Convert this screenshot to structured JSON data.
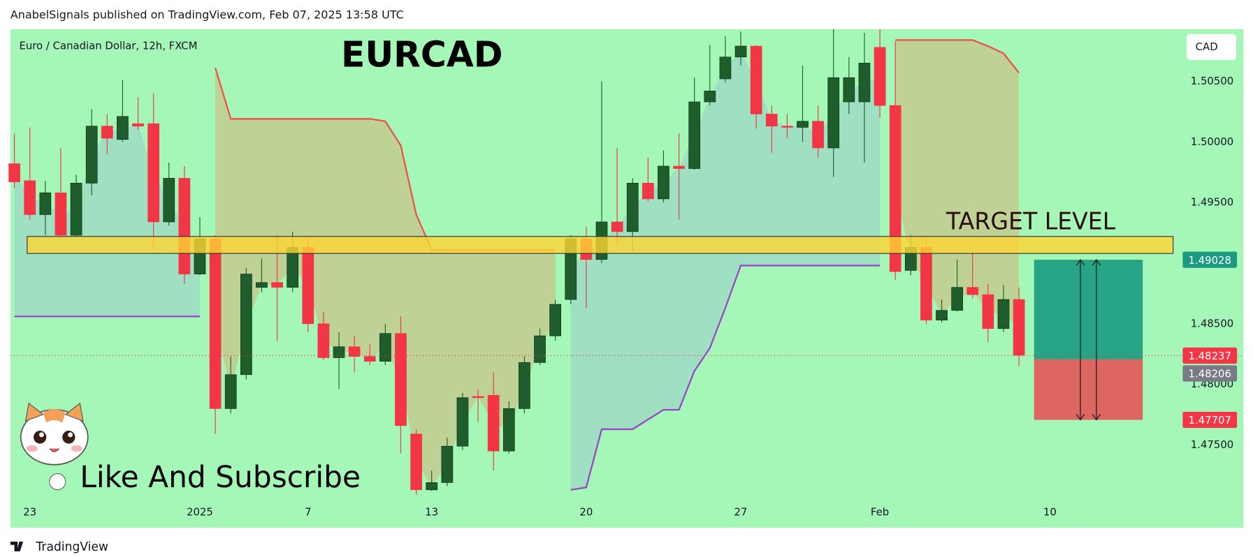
{
  "header": {
    "text": "AnabelSignals published on TradingView.com, Feb 07, 2025 13:58 UTC"
  },
  "footer": {
    "brand": "TradingView"
  },
  "chart_data": {
    "type": "candlestick",
    "title": "EURCAD",
    "subtitle": "Euro / Canadian Dollar, 12h, FXCM",
    "currency": "CAD",
    "annotation": "TARGET LEVEL",
    "caption": "Like And Subscribe",
    "up_color": "#1f5e2c",
    "down_color": "#f23645",
    "open": [
      1.4982,
      1.4968,
      1.494,
      1.4958,
      1.4923,
      1.4966,
      1.5013,
      1.5002,
      1.5015,
      1.5015,
      1.4934,
      1.497,
      1.4891,
      1.492,
      1.478,
      1.4808,
      1.488,
      1.4884,
      1.488,
      1.4913,
      1.485,
      1.4822,
      1.4831,
      1.4823,
      1.4819,
      1.4842,
      1.4759,
      1.4713,
      1.4719,
      1.4749,
      1.479,
      1.4791,
      1.4745,
      1.478,
      1.4818,
      1.484,
      1.487,
      1.492,
      1.4903,
      1.4934,
      1.4926,
      1.4966,
      1.4953,
      1.498,
      1.4978,
      1.5033,
      1.5052,
      1.507,
      1.5079,
      1.5023,
      1.5013,
      1.5012,
      1.5017,
      1.4995,
      1.5033,
      1.5033,
      1.5078,
      1.503,
      1.4894,
      1.4913,
      1.4853,
      1.4861,
      1.488,
      1.4874,
      1.4846,
      1.487
    ],
    "high": [
      1.5007,
      1.5012,
      1.4968,
      1.4995,
      1.4973,
      1.5027,
      1.5023,
      1.5051,
      1.5037,
      1.504,
      1.4983,
      1.498,
      1.4938,
      1.4923,
      1.4823,
      1.4896,
      1.4904,
      1.4923,
      1.4926,
      1.492,
      1.486,
      1.4843,
      1.484,
      1.4833,
      1.485,
      1.4856,
      1.4763,
      1.4729,
      1.4756,
      1.4793,
      1.4796,
      1.481,
      1.4786,
      1.4823,
      1.4846,
      1.487,
      1.4923,
      1.493,
      1.505,
      1.4995,
      1.497,
      1.4987,
      1.4993,
      1.5007,
      1.5053,
      1.508,
      1.5087,
      1.5091,
      1.508,
      1.503,
      1.5023,
      1.5063,
      1.503,
      1.5093,
      1.507,
      1.509,
      1.5093,
      1.5083,
      1.4923,
      1.492,
      1.487,
      1.4903,
      1.491,
      1.4883,
      1.4882,
      1.488
    ],
    "low": [
      1.4962,
      1.4936,
      1.4923,
      1.492,
      1.4922,
      1.4956,
      1.499,
      1.5,
      1.501,
      1.4911,
      1.4931,
      1.4883,
      1.489,
      1.4759,
      1.4776,
      1.4804,
      1.4876,
      1.4836,
      1.4876,
      1.4843,
      1.482,
      1.4796,
      1.481,
      1.4816,
      1.4816,
      1.4743,
      1.4709,
      1.4712,
      1.4716,
      1.4746,
      1.4769,
      1.4729,
      1.4743,
      1.4776,
      1.4816,
      1.4836,
      1.4866,
      1.4863,
      1.49,
      1.4916,
      1.491,
      1.4951,
      1.495,
      1.4936,
      1.4977,
      1.503,
      1.5049,
      1.5063,
      1.5011,
      1.4991,
      1.5003,
      1.5,
      1.4987,
      1.4971,
      1.5023,
      1.4983,
      1.502,
      1.4886,
      1.489,
      1.485,
      1.4851,
      1.486,
      1.4871,
      1.4835,
      1.4843,
      1.4815
    ],
    "close": [
      1.4967,
      1.494,
      1.4958,
      1.4923,
      1.4966,
      1.5013,
      1.5003,
      1.5021,
      1.5013,
      1.4934,
      1.497,
      1.4891,
      1.492,
      1.478,
      1.4808,
      1.4891,
      1.4884,
      1.488,
      1.4913,
      1.485,
      1.4822,
      1.4831,
      1.4823,
      1.4819,
      1.4842,
      1.4766,
      1.4713,
      1.4719,
      1.4749,
      1.4789,
      1.4789,
      1.4745,
      1.478,
      1.4818,
      1.484,
      1.4866,
      1.492,
      1.4903,
      1.4934,
      1.4926,
      1.4966,
      1.4953,
      1.498,
      1.4978,
      1.5033,
      1.5042,
      1.507,
      1.5079,
      1.5023,
      1.5013,
      1.5012,
      1.5017,
      1.4995,
      1.5053,
      1.5053,
      1.5065,
      1.503,
      1.4893,
      1.4913,
      1.4853,
      1.4861,
      1.488,
      1.4874,
      1.4846,
      1.487,
      1.4824
    ],
    "supertrend": [
      {
        "color": "#f0504a",
        "fill": "#c8c68a",
        "values": [
          null,
          null,
          null,
          null,
          null,
          null,
          null,
          null,
          null,
          null,
          null,
          null,
          null,
          1.5061,
          1.5019,
          1.5019,
          1.5019,
          1.5019,
          1.5019,
          1.5019,
          1.5019,
          1.5019,
          1.5019,
          1.5019,
          1.5017,
          1.4997,
          1.494,
          1.4911,
          1.4911,
          1.4911,
          1.4911,
          1.4911,
          1.4911,
          1.4911,
          1.4911,
          1.4911,
          null,
          null,
          null,
          null,
          null,
          null,
          null,
          null,
          null,
          null,
          null,
          null,
          null,
          null,
          null,
          null,
          null,
          null,
          null,
          null,
          null,
          1.5084,
          1.5084,
          1.5084,
          1.5084,
          1.5084,
          1.5084,
          1.5079,
          1.5073,
          1.5057
        ]
      },
      {
        "color": "#9b45c9",
        "fill": "#9fd8c6",
        "values": [
          1.4856,
          1.4856,
          1.4856,
          1.4856,
          1.4856,
          1.4856,
          1.4856,
          1.4856,
          1.4856,
          1.4856,
          1.4856,
          1.4856,
          1.4856,
          null,
          null,
          null,
          null,
          null,
          null,
          null,
          null,
          null,
          null,
          null,
          null,
          null,
          null,
          null,
          null,
          null,
          null,
          null,
          null,
          null,
          null,
          null,
          1.4713,
          1.4715,
          1.4763,
          1.4763,
          1.4763,
          1.4771,
          1.4779,
          1.4779,
          1.4811,
          1.483,
          1.4863,
          1.4898,
          1.4898,
          1.4898,
          1.4898,
          1.4898,
          1.4898,
          1.4898,
          1.4898,
          1.4898,
          1.4898,
          null,
          null,
          null,
          null,
          null,
          null,
          null,
          null,
          null
        ]
      }
    ],
    "zone": {
      "values": [
        1.4922,
        1.4908
      ],
      "color": "#ffd633"
    },
    "position": {
      "target": 1.49028,
      "entry": 1.48206,
      "stop": 1.47707,
      "target_color": "#1a9a80",
      "stop_color": "#e35757",
      "entry_color": "#787b86"
    },
    "last_price": 1.48237,
    "ylim": [
      1.4703,
      1.5093
    ],
    "yticks": [
      {
        "value": 1.505,
        "label": "1.50500"
      },
      {
        "value": 1.5,
        "label": "1.50000"
      },
      {
        "value": 1.495,
        "label": "1.49500"
      },
      {
        "value": 1.485,
        "label": "1.48500"
      },
      {
        "value": 1.48,
        "label": "1.48000"
      },
      {
        "value": 1.475,
        "label": "1.47500"
      }
    ],
    "xlim": [
      -0.26,
      75.49
    ],
    "xticks": [
      {
        "value": 1,
        "label": "23"
      },
      {
        "value": 12,
        "label": "2025"
      },
      {
        "value": 19,
        "label": "7"
      },
      {
        "value": 27,
        "label": "13"
      },
      {
        "value": 37,
        "label": "20"
      },
      {
        "value": 47,
        "label": "27"
      },
      {
        "value": 56,
        "label": "Feb"
      },
      {
        "value": 67,
        "label": "10"
      }
    ],
    "grid": false
  }
}
